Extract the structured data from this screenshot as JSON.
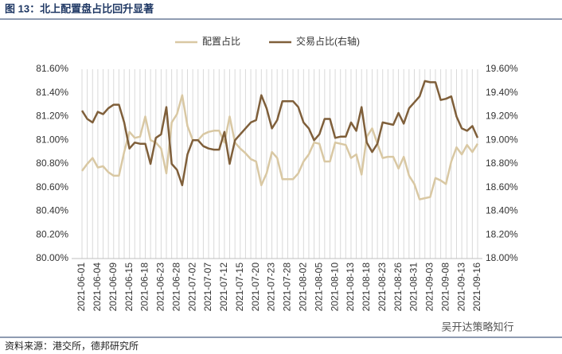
{
  "chart_data": {
    "type": "line",
    "title": "图 13：北上配置盘占比回升显著",
    "source": "资料来源：港交所，德邦研究所",
    "watermark": "吴开达策略知行",
    "categories": [
      "2021-06-01",
      null,
      null,
      "2021-06-04",
      null,
      null,
      "2021-06-09",
      null,
      null,
      "2021-06-15",
      null,
      null,
      "2021-06-18",
      null,
      null,
      "2021-06-23",
      null,
      null,
      "2021-06-28",
      null,
      null,
      "2021-07-02",
      null,
      null,
      "2021-07-07",
      null,
      null,
      "2021-07-12",
      null,
      null,
      "2021-07-15",
      null,
      null,
      "2021-07-20",
      null,
      null,
      "2021-07-23",
      null,
      null,
      "2021-07-28",
      null,
      null,
      "2021-08-02",
      null,
      null,
      "2021-08-05",
      null,
      null,
      "2021-08-10",
      null,
      null,
      "2021-08-13",
      null,
      null,
      "2021-08-18",
      null,
      null,
      "2021-08-23",
      null,
      null,
      "2021-08-26",
      null,
      null,
      "2021-08-31",
      null,
      null,
      "2021-09-03",
      null,
      null,
      "2021-09-08",
      null,
      null,
      "2021-09-13",
      null,
      null,
      "2021-09-16"
    ],
    "series": [
      {
        "name": "配置占比",
        "color": "#d9c8a3",
        "values": [
          80.74,
          80.8,
          80.85,
          80.77,
          80.78,
          80.73,
          80.7,
          80.7,
          80.9,
          81.07,
          81.02,
          81.03,
          81.2,
          81.0,
          80.98,
          80.93,
          80.72,
          81.15,
          81.22,
          81.38,
          81.12,
          81.0,
          81.0,
          81.05,
          81.07,
          81.08,
          81.08,
          80.98,
          81.2,
          80.98,
          80.93,
          80.89,
          80.84,
          80.82,
          80.62,
          80.72,
          80.9,
          80.85,
          80.67,
          80.67,
          80.67,
          80.72,
          80.82,
          80.88,
          80.98,
          80.97,
          80.82,
          80.82,
          80.98,
          80.97,
          80.96,
          80.85,
          80.88,
          80.71,
          81.03,
          81.1,
          80.97,
          80.85,
          80.86,
          80.86,
          80.76,
          80.86,
          80.7,
          80.63,
          80.5,
          80.51,
          80.52,
          80.68,
          80.66,
          80.63,
          80.82,
          80.94,
          80.88,
          80.96,
          80.9,
          80.97
        ]
      },
      {
        "name": "交易占比(右轴)",
        "color": "#7f5f3a",
        "axis": "y2",
        "values": [
          19.25,
          19.18,
          19.15,
          19.24,
          19.22,
          19.27,
          19.3,
          19.3,
          19.15,
          18.93,
          18.98,
          18.97,
          18.97,
          18.8,
          19.02,
          19.05,
          19.28,
          18.8,
          18.75,
          18.62,
          18.88,
          19.0,
          19.0,
          18.95,
          18.93,
          18.92,
          18.92,
          19.07,
          18.8,
          19.0,
          19.05,
          19.1,
          19.15,
          19.17,
          19.38,
          19.27,
          19.1,
          19.17,
          19.33,
          19.33,
          19.33,
          19.28,
          19.15,
          19.1,
          19.0,
          19.05,
          19.18,
          19.18,
          19.02,
          19.03,
          19.03,
          19.15,
          19.08,
          19.28,
          18.98,
          18.9,
          18.97,
          19.15,
          19.14,
          19.13,
          19.23,
          19.14,
          19.27,
          19.32,
          19.37,
          19.5,
          19.49,
          19.49,
          19.34,
          19.35,
          19.37,
          19.2,
          19.1,
          19.08,
          19.12,
          19.02
        ]
      }
    ],
    "ylim": [
      80.0,
      81.6
    ],
    "yticks": [
      {
        "value": 80.0,
        "label": "80.00%"
      },
      {
        "value": 80.2,
        "label": "80.20%"
      },
      {
        "value": 80.4,
        "label": "80.40%"
      },
      {
        "value": 80.6,
        "label": "80.60%"
      },
      {
        "value": 80.8,
        "label": "80.80%"
      },
      {
        "value": 81.0,
        "label": "81.00%"
      },
      {
        "value": 81.2,
        "label": "81.20%"
      },
      {
        "value": 81.4,
        "label": "81.40%"
      },
      {
        "value": 81.6,
        "label": "81.60%"
      }
    ],
    "y2lim": [
      18.0,
      19.6
    ],
    "y2ticks": [
      {
        "value": 18.0,
        "label": "18.00%"
      },
      {
        "value": 18.2,
        "label": "18.20%"
      },
      {
        "value": 18.4,
        "label": "18.40%"
      },
      {
        "value": 18.6,
        "label": "18.60%"
      },
      {
        "value": 18.8,
        "label": "18.80%"
      },
      {
        "value": 19.0,
        "label": "19.00%"
      },
      {
        "value": 19.2,
        "label": "19.20%"
      },
      {
        "value": 19.4,
        "label": "19.40%"
      },
      {
        "value": 19.6,
        "label": "19.60%"
      }
    ],
    "grid": "x",
    "legend": "top"
  }
}
